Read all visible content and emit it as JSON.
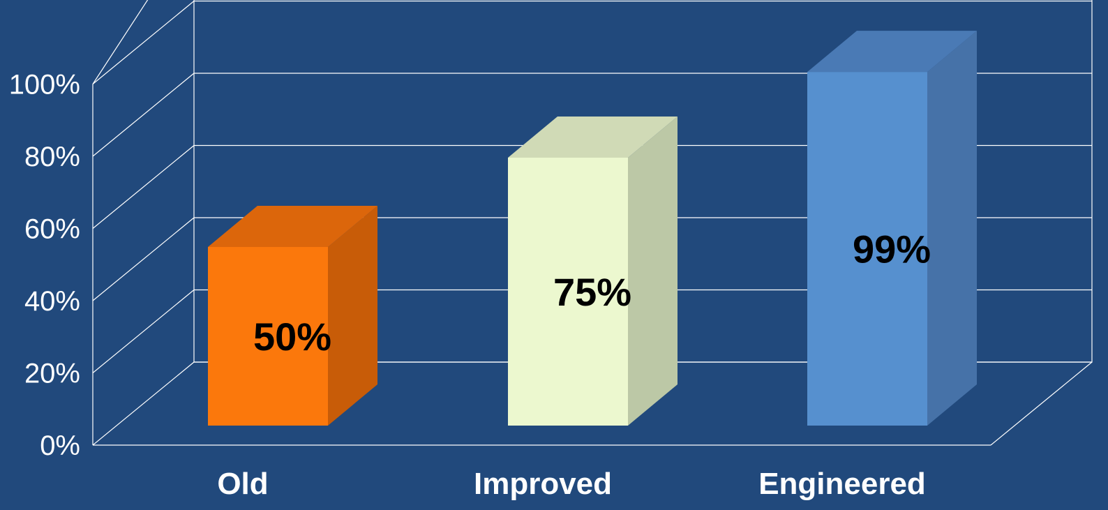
{
  "chart_data": {
    "type": "bar",
    "categories": [
      "Old",
      "Improved",
      "Engineered"
    ],
    "values": [
      50,
      75,
      99
    ],
    "data_labels": [
      "50%",
      "75%",
      "99%"
    ],
    "title": "",
    "xlabel": "",
    "ylabel": "",
    "ylim": [
      0,
      100
    ],
    "ytick_labels": [
      "0%",
      "20%",
      "40%",
      "60%",
      "80%",
      "100%"
    ],
    "grid": true,
    "legend": "none",
    "style": "3d-column",
    "background_color": "#21497c",
    "bar_colors": [
      {
        "front": "#fb780c",
        "side": "#c85c08",
        "top": "#dc660b"
      },
      {
        "front": "#ecf8cf",
        "side": "#bcc8a6",
        "top": "#d0dab6"
      },
      {
        "front": "#5690cf",
        "side": "#4672a8",
        "top": "#4a7ab5"
      }
    ]
  }
}
